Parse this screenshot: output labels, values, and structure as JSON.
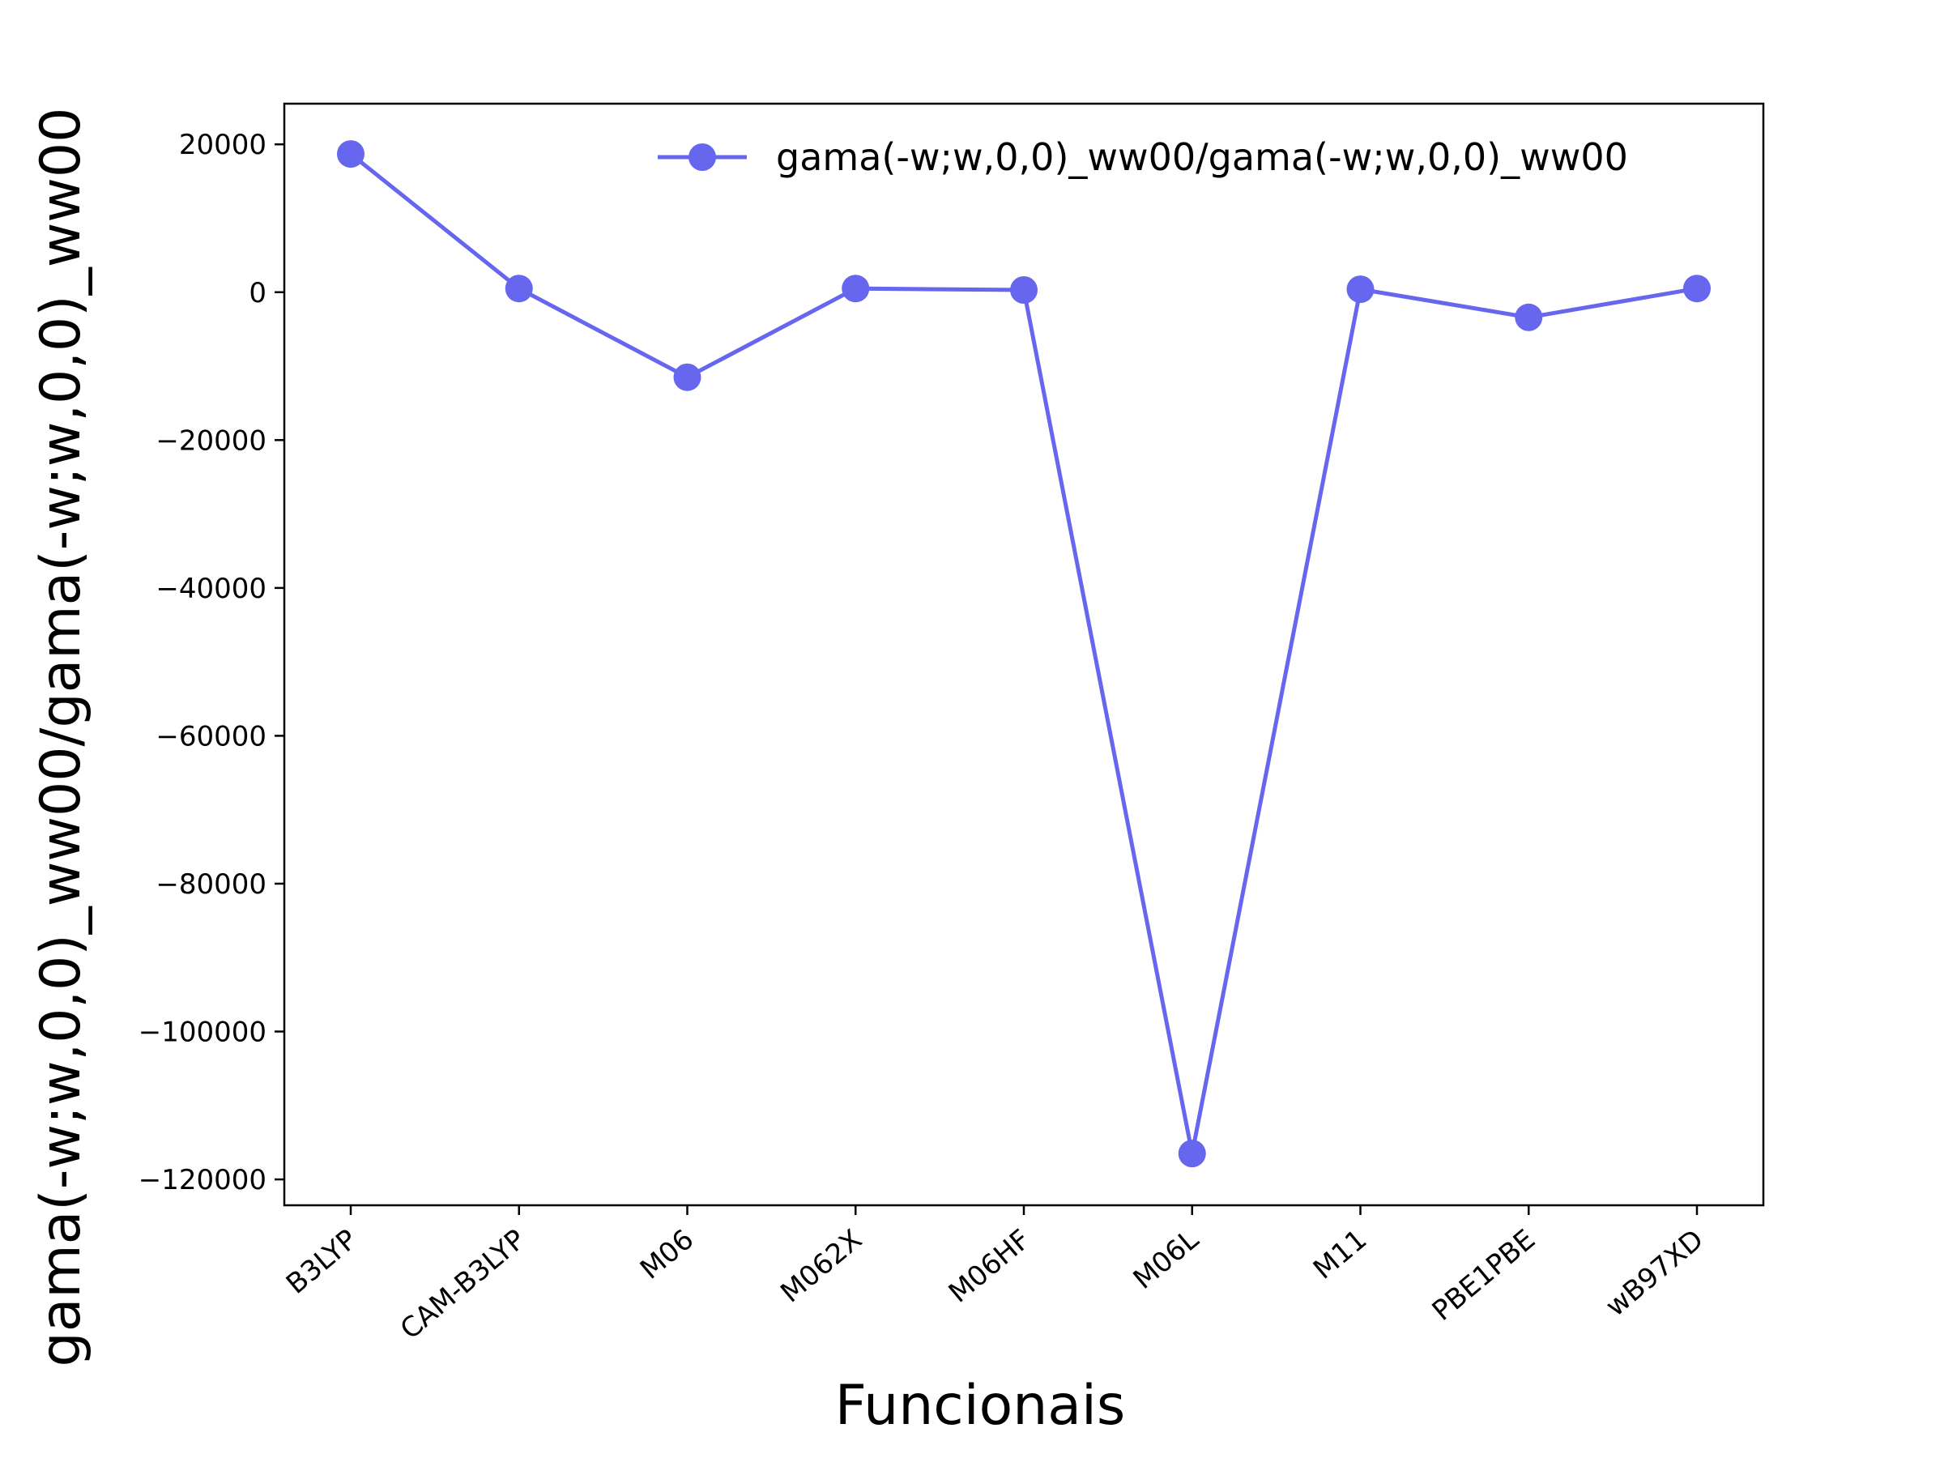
{
  "chart_data": {
    "type": "line",
    "categories": [
      "B3LYP",
      "CAM-B3LYP",
      "M06",
      "M062X",
      "M06HF",
      "M06L",
      "M11",
      "PBE1PBE",
      "wB97XD"
    ],
    "series": [
      {
        "name": "gama(-w;w,0,0)_ww00/gama(-w;w,0,0)_ww00",
        "color": "#6666ee",
        "marker": "circle",
        "values": [
          18700,
          500,
          -11500,
          500,
          300,
          -116500,
          400,
          -3400,
          500
        ]
      }
    ],
    "xlabel": "Funcionais",
    "ylabel": "gama(-w;w,0,0)_ww00/gama(-w;w,0,0)_ww00",
    "ylim": [
      -123500,
      25500
    ],
    "yticks": [
      20000,
      0,
      -20000,
      -40000,
      -60000,
      -80000,
      -100000,
      -120000
    ],
    "ytick_labels": [
      "20000",
      "0",
      "−20000",
      "−40000",
      "−60000",
      "−80000",
      "−100000",
      "−120000"
    ],
    "xtick_rotation": -40,
    "grid": false,
    "legend": "top-right"
  }
}
